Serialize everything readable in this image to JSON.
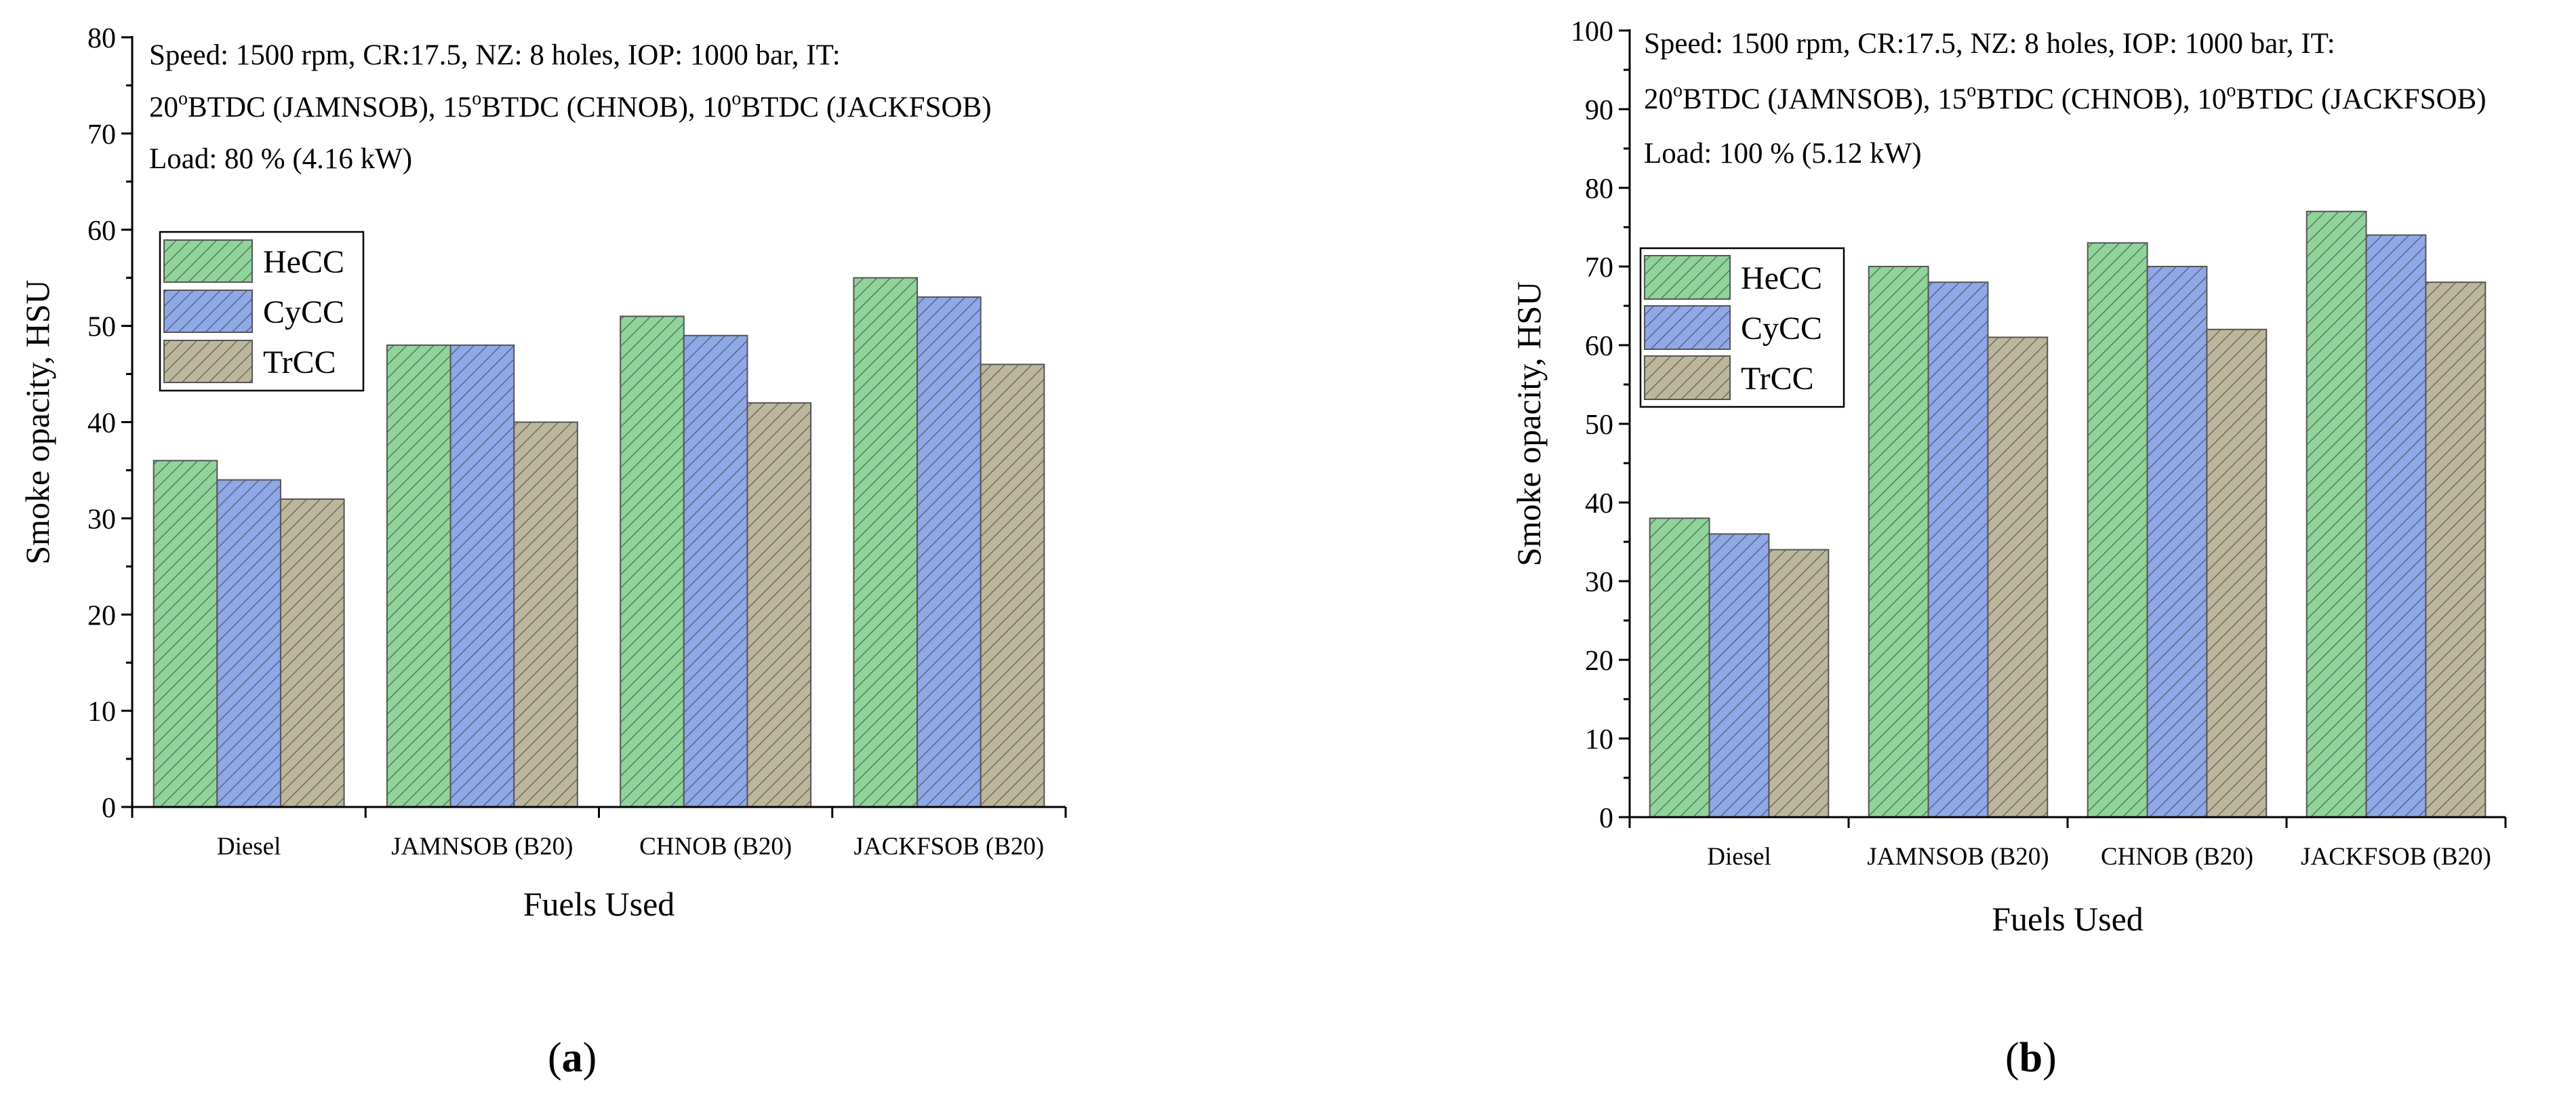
{
  "colors": {
    "hecc": "#8fd49a",
    "cycc": "#8ea8e8",
    "trcc": "#bcb69c",
    "hatch": "#3c3c3c",
    "axis": "#000000"
  },
  "chart_data": [
    {
      "type": "bar",
      "panel_label": "a",
      "annotation": {
        "line1": "Speed: 1500 rpm, CR:17.5, NZ: 8 holes, IOP: 1000 bar, IT:",
        "line2": [
          {
            "t": "20",
            "sup": false
          },
          {
            "t": "o",
            "sup": true
          },
          {
            "t": "BTDC (JAMNSOB), 15",
            "sup": false
          },
          {
            "t": "o",
            "sup": true
          },
          {
            "t": "BTDC (CHNOB), 10",
            "sup": false
          },
          {
            "t": "o",
            "sup": true
          },
          {
            "t": "BTDC (JACKFSOB)",
            "sup": false
          }
        ],
        "line3": "Load: 80 %  (4.16 kW)"
      },
      "xlabel": "Fuels Used",
      "ylabel": "Smoke opacity, HSU",
      "ylim": [
        0,
        80
      ],
      "yticks": [
        0,
        10,
        20,
        30,
        40,
        50,
        60,
        70,
        80
      ],
      "grid": false,
      "legend_position": "upper-left",
      "categories": [
        "Diesel",
        "JAMNSOB (B20)",
        "CHNOB (B20)",
        "JACKFSOB (B20)"
      ],
      "series": [
        {
          "name": "HeCC",
          "values": [
            36,
            48,
            51,
            55
          ]
        },
        {
          "name": "CyCC",
          "values": [
            34,
            48,
            49,
            53
          ]
        },
        {
          "name": "TrCC",
          "values": [
            32,
            40,
            42,
            46
          ]
        }
      ]
    },
    {
      "type": "bar",
      "panel_label": "b",
      "annotation": {
        "line1": "Speed: 1500 rpm, CR:17.5, NZ: 8 holes, IOP: 1000 bar, IT:",
        "line2": [
          {
            "t": "20",
            "sup": false
          },
          {
            "t": "o",
            "sup": true
          },
          {
            "t": "BTDC (JAMNSOB), 15",
            "sup": false
          },
          {
            "t": "o",
            "sup": true
          },
          {
            "t": "BTDC (CHNOB), 10",
            "sup": false
          },
          {
            "t": "o",
            "sup": true
          },
          {
            "t": "BTDC (JACKFSOB)",
            "sup": false
          }
        ],
        "line3": "Load: 100 %  (5.12 kW)"
      },
      "xlabel": "Fuels Used",
      "ylabel": "Smoke opacity, HSU",
      "ylim": [
        0,
        100
      ],
      "yticks": [
        0,
        10,
        20,
        30,
        40,
        50,
        60,
        70,
        80,
        90,
        100
      ],
      "grid": false,
      "legend_position": "upper-left",
      "categories": [
        "Diesel",
        "JAMNSOB (B20)",
        "CHNOB (B20)",
        "JACKFSOB (B20)"
      ],
      "series": [
        {
          "name": "HeCC",
          "values": [
            38,
            70,
            73,
            77
          ]
        },
        {
          "name": "CyCC",
          "values": [
            36,
            68,
            70,
            74
          ]
        },
        {
          "name": "TrCC",
          "values": [
            34,
            61,
            62,
            68
          ]
        }
      ]
    }
  ]
}
